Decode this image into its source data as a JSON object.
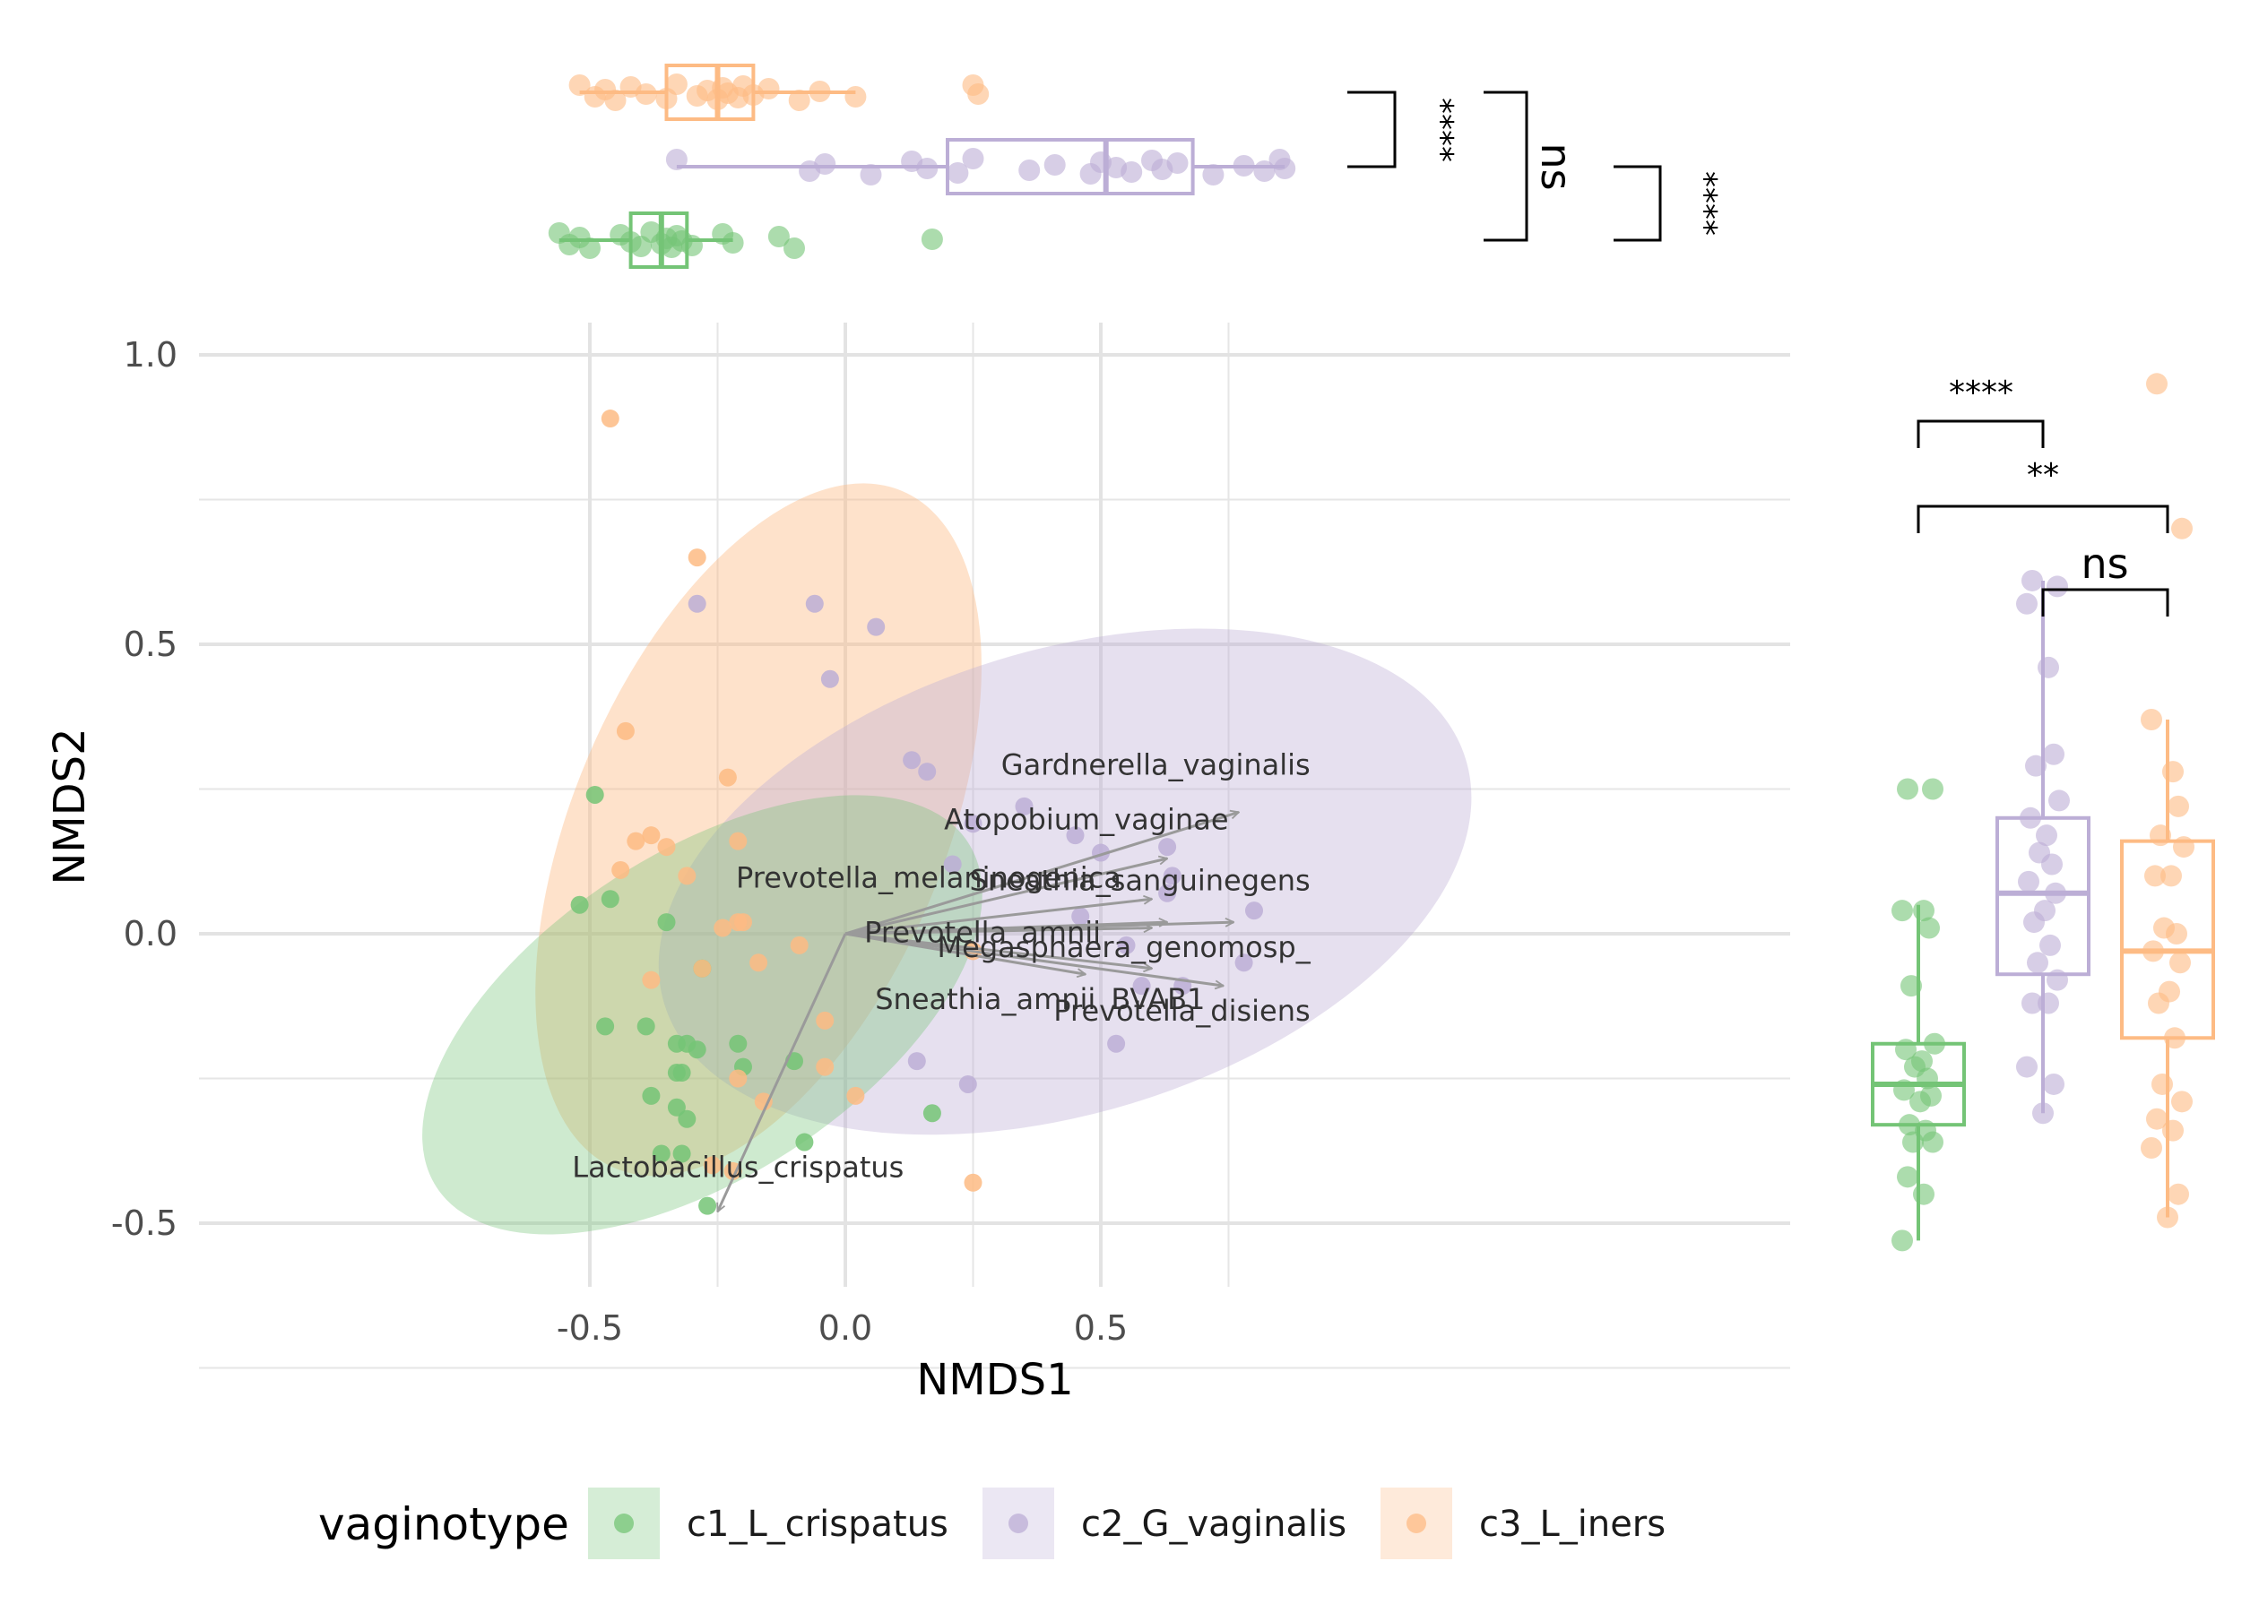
{
  "colors": {
    "c1": "#74c476",
    "c2": "#bcaed6",
    "c3": "#fdbb84",
    "arrow": "#9a9a9a",
    "grid": "#e6e6e6",
    "axis_text": "#4d4d4d"
  },
  "chart_data": [
    {
      "id": "ordination",
      "type": "scatter",
      "xlabel": "NMDS1",
      "ylabel": "NMDS2",
      "xlim": [
        -0.63,
        0.93
      ],
      "ylim": [
        -0.62,
        1.06
      ],
      "x_ticks": [
        -0.5,
        0.0,
        0.5
      ],
      "x_tick_labels": [
        "-0.5",
        "0.0",
        "0.5"
      ],
      "y_ticks": [
        -0.5,
        0.0,
        0.5,
        1.0
      ],
      "y_tick_labels": [
        "-0.5",
        "0.0",
        "0.5",
        "1.0"
      ],
      "grid": true,
      "series": [
        {
          "name": "c1_L_crispatus",
          "color_key": "c1",
          "x": [
            -0.49,
            -0.52,
            -0.46,
            -0.47,
            -0.35,
            -0.39,
            -0.33,
            -0.28,
            -0.31,
            -0.38,
            -0.32,
            -0.36,
            -0.33,
            -0.29,
            -0.31,
            -0.33,
            -0.21,
            -0.2,
            -0.1,
            -0.08,
            0.17,
            -0.32,
            -0.27
          ],
          "y": [
            0.24,
            0.05,
            0.06,
            -0.16,
            0.02,
            -0.16,
            -0.19,
            -0.06,
            -0.19,
            -0.28,
            -0.24,
            -0.38,
            -0.3,
            -0.2,
            -0.32,
            -0.24,
            -0.19,
            -0.23,
            -0.22,
            -0.36,
            -0.31,
            -0.38,
            -0.47
          ]
        },
        {
          "name": "c2_G_vaginalis",
          "color_key": "c2",
          "x": [
            -0.29,
            -0.06,
            -0.03,
            0.06,
            0.13,
            0.16,
            0.25,
            0.35,
            0.45,
            0.5,
            0.63,
            0.64,
            0.21,
            0.46,
            0.55,
            0.58,
            0.63,
            0.66,
            0.78,
            0.8,
            0.53,
            0.14,
            0.24
          ],
          "y": [
            0.57,
            0.57,
            0.44,
            0.53,
            0.3,
            0.28,
            0.19,
            0.22,
            0.17,
            0.14,
            0.15,
            0.1,
            0.12,
            0.03,
            -0.02,
            -0.09,
            0.07,
            -0.09,
            -0.05,
            0.04,
            -0.19,
            -0.22,
            -0.26
          ]
        },
        {
          "name": "c3_L_iners",
          "color_key": "c3",
          "x": [
            -0.46,
            -0.43,
            -0.44,
            -0.38,
            -0.41,
            -0.35,
            -0.31,
            -0.29,
            -0.24,
            -0.23,
            -0.21,
            -0.2,
            -0.21,
            -0.17,
            -0.09,
            -0.38,
            -0.28,
            -0.21,
            -0.16,
            -0.04,
            -0.04,
            0.02,
            0.25,
            0.25,
            -0.22,
            -0.26
          ],
          "y": [
            0.89,
            0.35,
            0.11,
            0.17,
            0.16,
            0.15,
            0.1,
            0.65,
            0.01,
            0.27,
            0.16,
            0.02,
            0.02,
            -0.05,
            -0.02,
            -0.08,
            -0.06,
            -0.25,
            -0.29,
            -0.15,
            -0.23,
            -0.28,
            -0.03,
            -0.43,
            -0.41,
            -0.4
          ]
        }
      ],
      "ellipses": [
        {
          "series": "c3_L_iners",
          "center": [
            -0.17,
            0.18
          ],
          "semi_major": 0.72,
          "semi_minor": 0.32,
          "angle_deg": -67,
          "opacity": 0.42
        },
        {
          "series": "c2_G_vaginalis",
          "center": [
            0.43,
            0.09
          ],
          "semi_major": 0.82,
          "semi_minor": 0.4,
          "angle_deg": -17,
          "opacity": 0.38
        },
        {
          "series": "c1_L_crispatus",
          "center": [
            -0.28,
            -0.14
          ],
          "semi_major": 0.62,
          "semi_minor": 0.28,
          "angle_deg": -33,
          "opacity": 0.35
        }
      ],
      "arrows": [
        {
          "label": "Gardnerella_vaginalis",
          "x": 0.77,
          "y": 0.21,
          "label_x": 0.91,
          "label_y": 0.275,
          "anchor": "end"
        },
        {
          "label": "Atopobium_vaginae",
          "x": 0.63,
          "y": 0.13,
          "label_x": 0.75,
          "label_y": 0.18,
          "anchor": "end"
        },
        {
          "label": "Prevotella_melaninogenica",
          "x": 0.6,
          "y": 0.06,
          "label_x": 0.54,
          "label_y": 0.08,
          "anchor": "end"
        },
        {
          "label": "Sneathia_sanguinegens",
          "x": 0.63,
          "y": 0.02,
          "label_x": 0.91,
          "label_y": 0.075,
          "anchor": "end"
        },
        {
          "label": "Prevotella_amnii",
          "x": 0.6,
          "y": 0.01,
          "label_x": 0.5,
          "label_y": -0.015,
          "anchor": "end"
        },
        {
          "label": "Megasphaera_genomosp_",
          "x": 0.76,
          "y": 0.02,
          "label_x": 0.91,
          "label_y": -0.04,
          "anchor": "end"
        },
        {
          "label": "Sneathia_amnii",
          "x": 0.47,
          "y": -0.07,
          "label_x": 0.49,
          "label_y": -0.13,
          "anchor": "end"
        },
        {
          "label": "BVAB1",
          "x": 0.6,
          "y": -0.06,
          "label_x": 0.52,
          "label_y": -0.13,
          "anchor": "start"
        },
        {
          "label": "Prevotella_disiens",
          "x": 0.74,
          "y": -0.09,
          "label_x": 0.91,
          "label_y": -0.15,
          "anchor": "end"
        },
        {
          "label": "Lactobacillus_crispatus",
          "x": -0.25,
          "y": -0.48,
          "label_x": -0.21,
          "label_y": -0.42,
          "anchor": "middle"
        }
      ]
    },
    {
      "id": "nmds1_boxplot",
      "type": "boxplot",
      "orientation": "horizontal",
      "axis": "NMDS1",
      "xlim": [
        -0.63,
        0.93
      ],
      "groups": [
        {
          "name": "c1_L_crispatus",
          "color_key": "c1",
          "min": -0.56,
          "q1": -0.42,
          "median": -0.36,
          "q3": -0.31,
          "max": -0.22,
          "outliers": [
            -0.13,
            -0.1,
            0.17
          ],
          "points": [
            -0.56,
            -0.54,
            -0.52,
            -0.5,
            -0.44,
            -0.42,
            -0.4,
            -0.38,
            -0.36,
            -0.35,
            -0.34,
            -0.33,
            -0.32,
            -0.3,
            -0.24,
            -0.22,
            -0.13,
            -0.1,
            0.17
          ]
        },
        {
          "name": "c2_G_vaginalis",
          "color_key": "c2",
          "min": -0.33,
          "q1": 0.2,
          "median": 0.51,
          "q3": 0.68,
          "max": 0.86,
          "outliers": [],
          "points": [
            -0.33,
            -0.07,
            -0.04,
            0.05,
            0.13,
            0.16,
            0.22,
            0.25,
            0.36,
            0.41,
            0.48,
            0.5,
            0.53,
            0.56,
            0.6,
            0.62,
            0.65,
            0.72,
            0.78,
            0.82,
            0.85,
            0.86
          ]
        },
        {
          "name": "c3_L_iners",
          "color_key": "c3",
          "min": -0.52,
          "q1": -0.35,
          "median": -0.25,
          "q3": -0.18,
          "max": 0.02,
          "outliers": [
            0.25,
            0.26
          ],
          "points": [
            -0.52,
            -0.49,
            -0.47,
            -0.45,
            -0.42,
            -0.39,
            -0.35,
            -0.33,
            -0.29,
            -0.27,
            -0.25,
            -0.24,
            -0.23,
            -0.21,
            -0.2,
            -0.18,
            -0.15,
            -0.09,
            -0.05,
            0.02,
            0.25,
            0.26
          ]
        }
      ],
      "comparisons": [
        {
          "label": "****",
          "between": [
            "c3_L_iners",
            "c2_G_vaginalis"
          ]
        },
        {
          "label": "ns",
          "between": [
            "c3_L_iners",
            "c1_L_crispatus"
          ]
        },
        {
          "label": "****",
          "between": [
            "c2_G_vaginalis",
            "c1_L_crispatus"
          ]
        }
      ]
    },
    {
      "id": "nmds2_boxplot",
      "type": "boxplot",
      "orientation": "vertical",
      "axis": "NMDS2",
      "ylim": [
        -0.62,
        1.06
      ],
      "groups": [
        {
          "name": "c1_L_crispatus",
          "color_key": "c1",
          "min": -0.53,
          "q1": -0.33,
          "median": -0.26,
          "q3": -0.19,
          "max": 0.05,
          "outliers": [
            0.25
          ],
          "points": [
            0.25,
            0.25,
            0.04,
            0.04,
            0.01,
            -0.09,
            -0.19,
            -0.2,
            -0.22,
            -0.23,
            -0.25,
            -0.27,
            -0.28,
            -0.29,
            -0.33,
            -0.34,
            -0.36,
            -0.36,
            -0.42,
            -0.45,
            -0.53
          ]
        },
        {
          "name": "c2_G_vaginalis",
          "color_key": "c2",
          "min": -0.31,
          "q1": -0.07,
          "median": 0.07,
          "q3": 0.2,
          "max": 0.61,
          "outliers": [],
          "points": [
            0.61,
            0.6,
            0.57,
            0.46,
            0.31,
            0.29,
            0.23,
            0.2,
            0.17,
            0.14,
            0.12,
            0.09,
            0.07,
            0.04,
            0.02,
            -0.02,
            -0.05,
            -0.08,
            -0.12,
            -0.12,
            -0.23,
            -0.26,
            -0.31
          ]
        },
        {
          "name": "c3_L_iners",
          "color_key": "c3",
          "min": -0.49,
          "q1": -0.18,
          "median": -0.03,
          "q3": 0.16,
          "max": 0.37,
          "outliers": [
            0.95,
            0.7
          ],
          "points": [
            0.95,
            0.7,
            0.37,
            0.28,
            0.22,
            0.17,
            0.15,
            0.1,
            0.1,
            0.01,
            0.0,
            -0.03,
            -0.05,
            -0.1,
            -0.12,
            -0.18,
            -0.26,
            -0.29,
            -0.32,
            -0.34,
            -0.37,
            -0.45,
            -0.49
          ]
        }
      ],
      "comparisons": [
        {
          "label": "****",
          "between": [
            "c1_L_crispatus",
            "c2_G_vaginalis"
          ]
        },
        {
          "label": "**",
          "between": [
            "c1_L_crispatus",
            "c3_L_iners"
          ]
        },
        {
          "label": "ns",
          "between": [
            "c2_G_vaginalis",
            "c3_L_iners"
          ]
        }
      ]
    }
  ],
  "legend": {
    "title": "vaginotype",
    "placement": "bottom",
    "items": [
      {
        "label": "c1_L_crispatus",
        "color_key": "c1"
      },
      {
        "label": "c2_G_vaginalis",
        "color_key": "c2"
      },
      {
        "label": "c3_L_iners",
        "color_key": "c3"
      }
    ]
  }
}
